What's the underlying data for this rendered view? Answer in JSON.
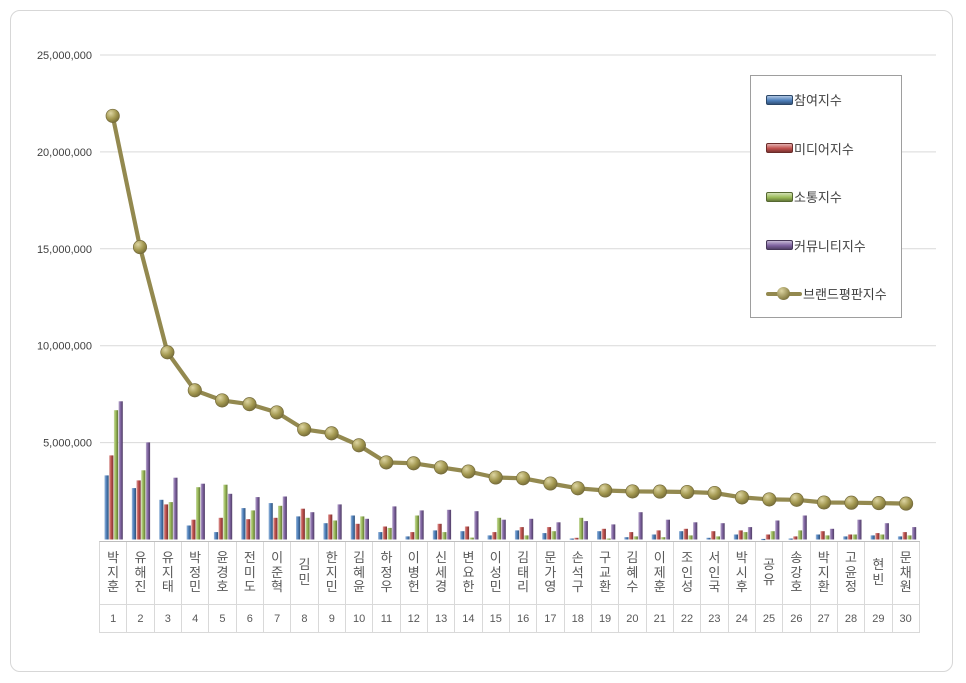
{
  "chart_data": {
    "type": "bar",
    "subtype": "grouped-bars-with-line-overlay",
    "title": "",
    "xlabel": "",
    "ylabel": "",
    "grid": true,
    "legend_position": "upper-right",
    "categories": [
      "박지훈",
      "유해진",
      "유지태",
      "박정민",
      "윤경호",
      "전미도",
      "이준혁",
      "김민",
      "한지민",
      "김혜윤",
      "하정우",
      "이병헌",
      "신세경",
      "변요한",
      "이성민",
      "김태리",
      "문가영",
      "손석구",
      "구교환",
      "김혜수",
      "이제훈",
      "조인성",
      "서인국",
      "박시후",
      "공유",
      "송강호",
      "박지환",
      "고윤정",
      "현빈",
      "문채원"
    ],
    "ranks": [
      "1",
      "2",
      "3",
      "4",
      "5",
      "6",
      "7",
      "8",
      "9",
      "10",
      "11",
      "12",
      "13",
      "14",
      "15",
      "16",
      "17",
      "18",
      "19",
      "20",
      "21",
      "22",
      "23",
      "24",
      "25",
      "26",
      "27",
      "28",
      "29",
      "30"
    ],
    "y_axis": {
      "min": 0,
      "max": 25000000,
      "tick_interval": 5000000,
      "tick_labels": [
        "5,000,000",
        "10,000,000",
        "15,000,000",
        "20,000,000",
        "25,000,000"
      ]
    },
    "series": [
      {
        "name": "참여지수",
        "type": "bar",
        "color": "#4F81BD",
        "values": [
          3310000,
          2650000,
          2050000,
          720000,
          380000,
          1620000,
          1880000,
          1190000,
          840000,
          1240000,
          380000,
          160000,
          470000,
          430000,
          210000,
          470000,
          330000,
          50000,
          430000,
          120000,
          260000,
          430000,
          90000,
          260000,
          30000,
          50000,
          260000,
          160000,
          210000,
          160000
        ]
      },
      {
        "name": "미디어지수",
        "type": "bar",
        "color": "#C0504D",
        "values": [
          4340000,
          3050000,
          1810000,
          1020000,
          1120000,
          1050000,
          1120000,
          1590000,
          1290000,
          810000,
          670000,
          380000,
          810000,
          670000,
          380000,
          640000,
          640000,
          90000,
          550000,
          380000,
          470000,
          550000,
          430000,
          470000,
          260000,
          160000,
          430000,
          260000,
          330000,
          380000
        ]
      },
      {
        "name": "소통지수",
        "type": "bar",
        "color": "#9BBB59",
        "values": [
          6670000,
          3570000,
          1930000,
          2700000,
          2830000,
          1500000,
          1740000,
          1120000,
          980000,
          1190000,
          600000,
          1240000,
          380000,
          100000,
          1120000,
          210000,
          430000,
          1120000,
          50000,
          160000,
          120000,
          210000,
          160000,
          380000,
          430000,
          470000,
          210000,
          260000,
          260000,
          210000
        ]
      },
      {
        "name": "커뮤니티지수",
        "type": "bar",
        "color": "#8064A2",
        "values": [
          7130000,
          5010000,
          3190000,
          2880000,
          2360000,
          2190000,
          2220000,
          1410000,
          1810000,
          1070000,
          1710000,
          1500000,
          1530000,
          1460000,
          1020000,
          1070000,
          890000,
          950000,
          780000,
          1410000,
          1020000,
          890000,
          840000,
          640000,
          980000,
          1240000,
          550000,
          1020000,
          840000,
          640000
        ]
      },
      {
        "name": "브랜드평판지수",
        "type": "line",
        "color": "#93894F",
        "values": [
          21860000,
          15090000,
          9660000,
          7700000,
          7180000,
          6980000,
          6560000,
          5680000,
          5480000,
          4860000,
          3980000,
          3930000,
          3720000,
          3510000,
          3200000,
          3160000,
          2890000,
          2640000,
          2530000,
          2480000,
          2470000,
          2450000,
          2400000,
          2170000,
          2070000,
          2050000,
          1910000,
          1900000,
          1880000,
          1850000
        ]
      }
    ],
    "style": {
      "grid_color": "#d9d9d9",
      "axis_text_color": "#595959",
      "tick_label_color": "#404040",
      "legend_border_color": "#9e9e9e",
      "frame_border_color": "#d7d7d7"
    }
  }
}
